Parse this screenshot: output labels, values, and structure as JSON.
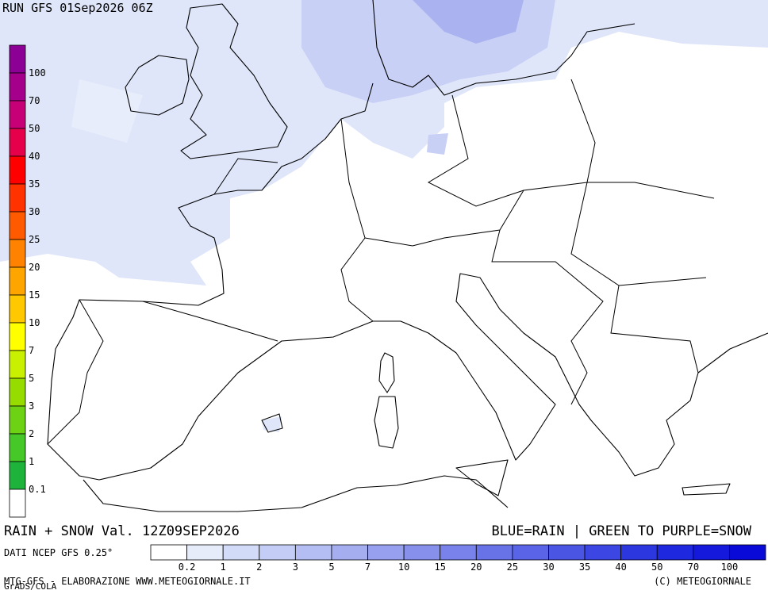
{
  "header": {
    "run": "RUN GFS 01Sep2026 06Z"
  },
  "snow_scale": {
    "labels": [
      "100",
      "70",
      "50",
      "40",
      "35",
      "30",
      "25",
      "20",
      "15",
      "10",
      "7",
      "5",
      "3",
      "2",
      "1",
      "0.1"
    ],
    "colors": [
      "#8c0096",
      "#a5008c",
      "#c80078",
      "#e6004b",
      "#ff0000",
      "#ff3200",
      "#ff5a00",
      "#ff8200",
      "#ffa500",
      "#ffc800",
      "#ffff00",
      "#c8f000",
      "#96dc00",
      "#6ed214",
      "#46c828",
      "#1eb43c",
      "#ffffff"
    ]
  },
  "footer": {
    "title": "RAIN + SNOW Val. 12Z09SEP2026",
    "legend_note": "BLUE=RAIN | GREEN TO PURPLE=SNOW",
    "source": "DATI NCEP GFS 0.25°",
    "credit": "MTG-GFS - ELABORAZIONE WWW.METEOGIORNALE.IT",
    "software": "GrADS/COLA",
    "copyright": "(C) METEOGIORNALE"
  },
  "rain_scale": {
    "labels": [
      "0.2",
      "1",
      "2",
      "3",
      "5",
      "7",
      "10",
      "15",
      "20",
      "25",
      "30",
      "35",
      "40",
      "50",
      "70",
      "100"
    ],
    "colors": [
      "#ffffff",
      "#e6ecfa",
      "#d2dcf8",
      "#c3cdf5",
      "#b4bef2",
      "#a5aff0",
      "#96a0ee",
      "#8791ec",
      "#7882ea",
      "#6973e8",
      "#5a64e6",
      "#4b55e4",
      "#3c46e2",
      "#2d37e0",
      "#1e28de",
      "#1419dc",
      "#0a0ad8"
    ]
  }
}
